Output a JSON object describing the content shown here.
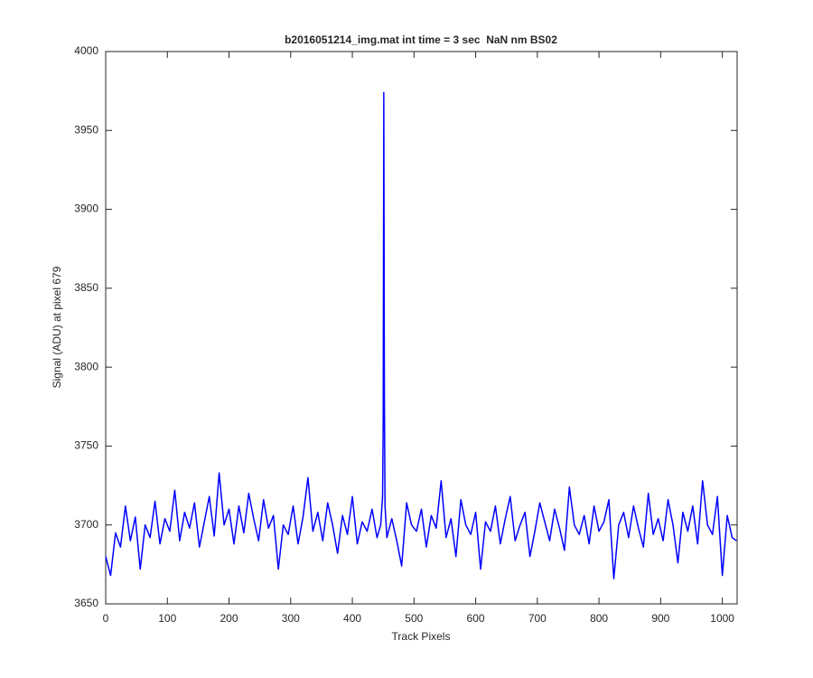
{
  "chart_data": {
    "type": "line",
    "title": "b2016051214_img.mat int time = 3 sec  NaN nm BS02",
    "x_label": "Track Pixels",
    "y_label": "Signal (ADU) at pixel 679",
    "color": "#0000ff",
    "xlim": [
      0,
      1024
    ],
    "xticks": [
      0,
      100,
      200,
      300,
      400,
      500,
      600,
      700,
      800,
      900,
      1000
    ],
    "ylim": [
      3650,
      4000
    ],
    "yticks": [
      3650,
      3700,
      3750,
      3800,
      3850,
      3900,
      3950,
      4000
    ],
    "grid": false,
    "x": [
      0,
      8,
      16,
      24,
      32,
      40,
      48,
      56,
      64,
      72,
      80,
      88,
      96,
      104,
      112,
      120,
      128,
      136,
      144,
      152,
      160,
      168,
      176,
      184,
      192,
      200,
      208,
      216,
      224,
      232,
      240,
      248,
      256,
      264,
      272,
      280,
      288,
      296,
      304,
      312,
      320,
      328,
      336,
      344,
      352,
      360,
      368,
      376,
      384,
      392,
      400,
      408,
      416,
      424,
      432,
      440,
      446,
      449,
      450,
      451,
      452,
      453,
      456,
      464,
      472,
      480,
      488,
      496,
      504,
      512,
      520,
      528,
      536,
      544,
      552,
      560,
      568,
      576,
      584,
      592,
      600,
      608,
      616,
      624,
      632,
      640,
      648,
      656,
      664,
      672,
      680,
      688,
      696,
      704,
      712,
      720,
      728,
      736,
      744,
      752,
      760,
      768,
      776,
      784,
      792,
      800,
      808,
      816,
      824,
      832,
      840,
      848,
      856,
      864,
      872,
      880,
      888,
      896,
      904,
      912,
      920,
      928,
      936,
      944,
      952,
      960,
      968,
      976,
      984,
      992,
      1000,
      1008,
      1016,
      1023
    ],
    "values": [
      3680,
      3668,
      3695,
      3686,
      3712,
      3690,
      3705,
      3672,
      3700,
      3692,
      3715,
      3688,
      3704,
      3696,
      3722,
      3690,
      3708,
      3698,
      3714,
      3686,
      3702,
      3718,
      3693,
      3733,
      3700,
      3710,
      3688,
      3712,
      3695,
      3720,
      3704,
      3690,
      3716,
      3698,
      3706,
      3672,
      3700,
      3694,
      3712,
      3688,
      3705,
      3730,
      3696,
      3708,
      3690,
      3714,
      3700,
      3682,
      3706,
      3694,
      3718,
      3688,
      3702,
      3696,
      3710,
      3692,
      3700,
      3718,
      3760,
      3974,
      3780,
      3712,
      3692,
      3704,
      3690,
      3674,
      3714,
      3700,
      3696,
      3710,
      3686,
      3706,
      3698,
      3728,
      3692,
      3704,
      3680,
      3716,
      3700,
      3694,
      3708,
      3672,
      3702,
      3696,
      3712,
      3688,
      3704,
      3718,
      3690,
      3700,
      3708,
      3680,
      3696,
      3714,
      3702,
      3690,
      3710,
      3698,
      3684,
      3724,
      3700,
      3694,
      3706,
      3688,
      3712,
      3696,
      3702,
      3716,
      3666,
      3700,
      3708,
      3692,
      3712,
      3698,
      3686,
      3720,
      3694,
      3704,
      3690,
      3716,
      3700,
      3676,
      3708,
      3696,
      3712,
      3688,
      3728,
      3700,
      3694,
      3718,
      3668,
      3706,
      3692,
      3690
    ]
  }
}
